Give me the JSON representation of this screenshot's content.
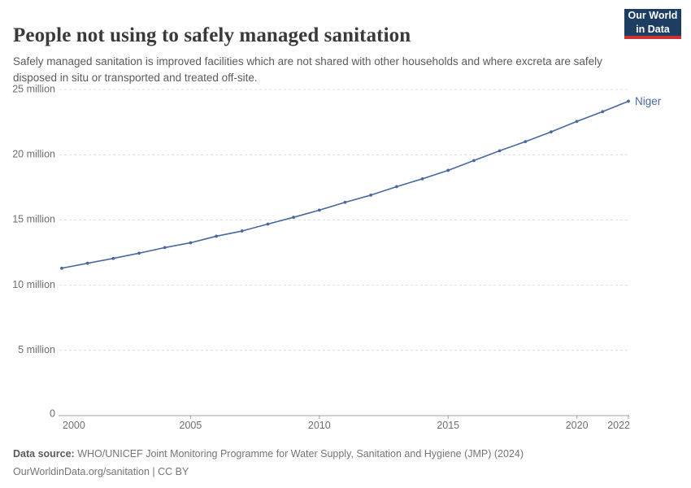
{
  "header": {
    "title": "People not using to safely managed sanitation",
    "subtitle": "Safely managed sanitation is improved facilities which are not shared with other households and where excreta are safely disposed in situ or transported and treated off-site."
  },
  "logo": {
    "line1": "Our World",
    "line2": "in Data",
    "bg_color": "#1d3d63",
    "accent_color": "#cf3130"
  },
  "chart_data": {
    "type": "line",
    "title": "People not using to safely managed sanitation",
    "xlabel": "",
    "ylabel": "",
    "unit": "million people",
    "x": [
      2000,
      2001,
      2002,
      2003,
      2004,
      2005,
      2006,
      2007,
      2008,
      2009,
      2010,
      2011,
      2012,
      2013,
      2014,
      2015,
      2016,
      2017,
      2018,
      2019,
      2020,
      2021,
      2022
    ],
    "series": [
      {
        "name": "Niger",
        "values_millions": [
          11.3,
          11.68,
          12.05,
          12.45,
          12.88,
          13.25,
          13.75,
          14.15,
          14.68,
          15.2,
          15.75,
          16.35,
          16.9,
          17.55,
          18.15,
          18.8,
          19.55,
          20.3,
          21.0,
          21.75,
          22.55,
          23.3,
          24.1
        ]
      }
    ],
    "xlim": [
      2000,
      2022
    ],
    "ylim_millions": [
      0,
      25
    ],
    "x_tick_labels": [
      "2000",
      "2005",
      "2010",
      "2015",
      "2020",
      "2022"
    ],
    "x_tick_years": [
      2000,
      2005,
      2010,
      2015,
      2020,
      2022
    ],
    "y_tick_values_millions": [
      0,
      5,
      10,
      15,
      20,
      25
    ],
    "y_tick_labels": [
      "0",
      "5 million",
      "10 million",
      "15 million",
      "20 million",
      "25 million"
    ],
    "grid": "horizontal-dashed",
    "legend_position": "end-of-line-label",
    "end_label": "Niger",
    "colors": {
      "line": "#4a68a0",
      "grid": "#dcdcdc",
      "axis": "#a1a1a1",
      "tick_text": "#6e6e6e"
    }
  },
  "footer": {
    "source_label": "Data source:",
    "source_text": " WHO/UNICEF Joint Monitoring Programme for Water Supply, Sanitation and Hygiene (JMP) (2024)",
    "license_line": "OurWorldinData.org/sanitation | CC BY"
  }
}
